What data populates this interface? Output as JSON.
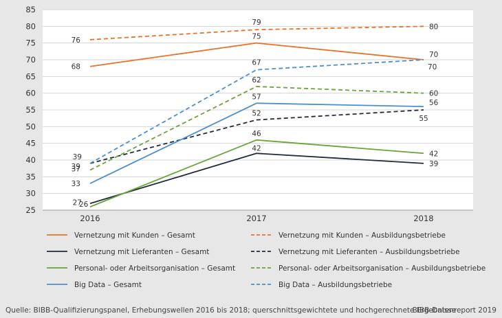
{
  "chart_data": {
    "type": "line",
    "x": [
      "2016",
      "2017",
      "2018"
    ],
    "ylim": [
      25,
      85
    ],
    "yticks": [
      25,
      30,
      35,
      40,
      45,
      50,
      55,
      60,
      65,
      70,
      75,
      80,
      85
    ],
    "grid": true,
    "series": [
      {
        "name": "Vernetzung mit Kunden – Gesamt",
        "values": [
          68,
          75,
          70
        ],
        "color": "#ec7125",
        "dashed": false
      },
      {
        "name": "Vernetzung mit Kunden – Ausbildungsbetriebe",
        "values": [
          76,
          79,
          80
        ],
        "color": "#ec7125",
        "dashed": true
      },
      {
        "name": "Vernetzung mit Lieferanten – Gesamt",
        "values": [
          27,
          42,
          39
        ],
        "color": "#1f2a3c",
        "dashed": false
      },
      {
        "name": "Vernetzung mit Lieferanten – Ausbildungsbetriebe",
        "values": [
          39,
          52,
          55
        ],
        "color": "#1f2a3c",
        "dashed": true
      },
      {
        "name": "Personal- oder Arbeitsorganisation – Gesamt",
        "values": [
          26,
          46,
          42
        ],
        "color": "#66a536",
        "dashed": false
      },
      {
        "name": "Personal- oder Arbeitsorganisation – Ausbildungsbetriebe",
        "values": [
          37,
          62,
          60
        ],
        "color": "#66a536",
        "dashed": true
      },
      {
        "name": "Big Data – Gesamt",
        "values": [
          33,
          57,
          56
        ],
        "color": "#4a8fcb",
        "dashed": false
      },
      {
        "name": "Big Data – Ausbildungsbetriebe",
        "values": [
          39,
          67,
          70
        ],
        "color": "#4a8fcb",
        "dashed": true
      }
    ]
  },
  "footer": {
    "source": "Quelle: BIBB-Qualifizierungspanel, Erhebungswellen 2016 bis 2018; querschnittsgewichtete und hochgerechnete Ergebnisse",
    "credit": "BIBB-Datenreport 2019"
  }
}
